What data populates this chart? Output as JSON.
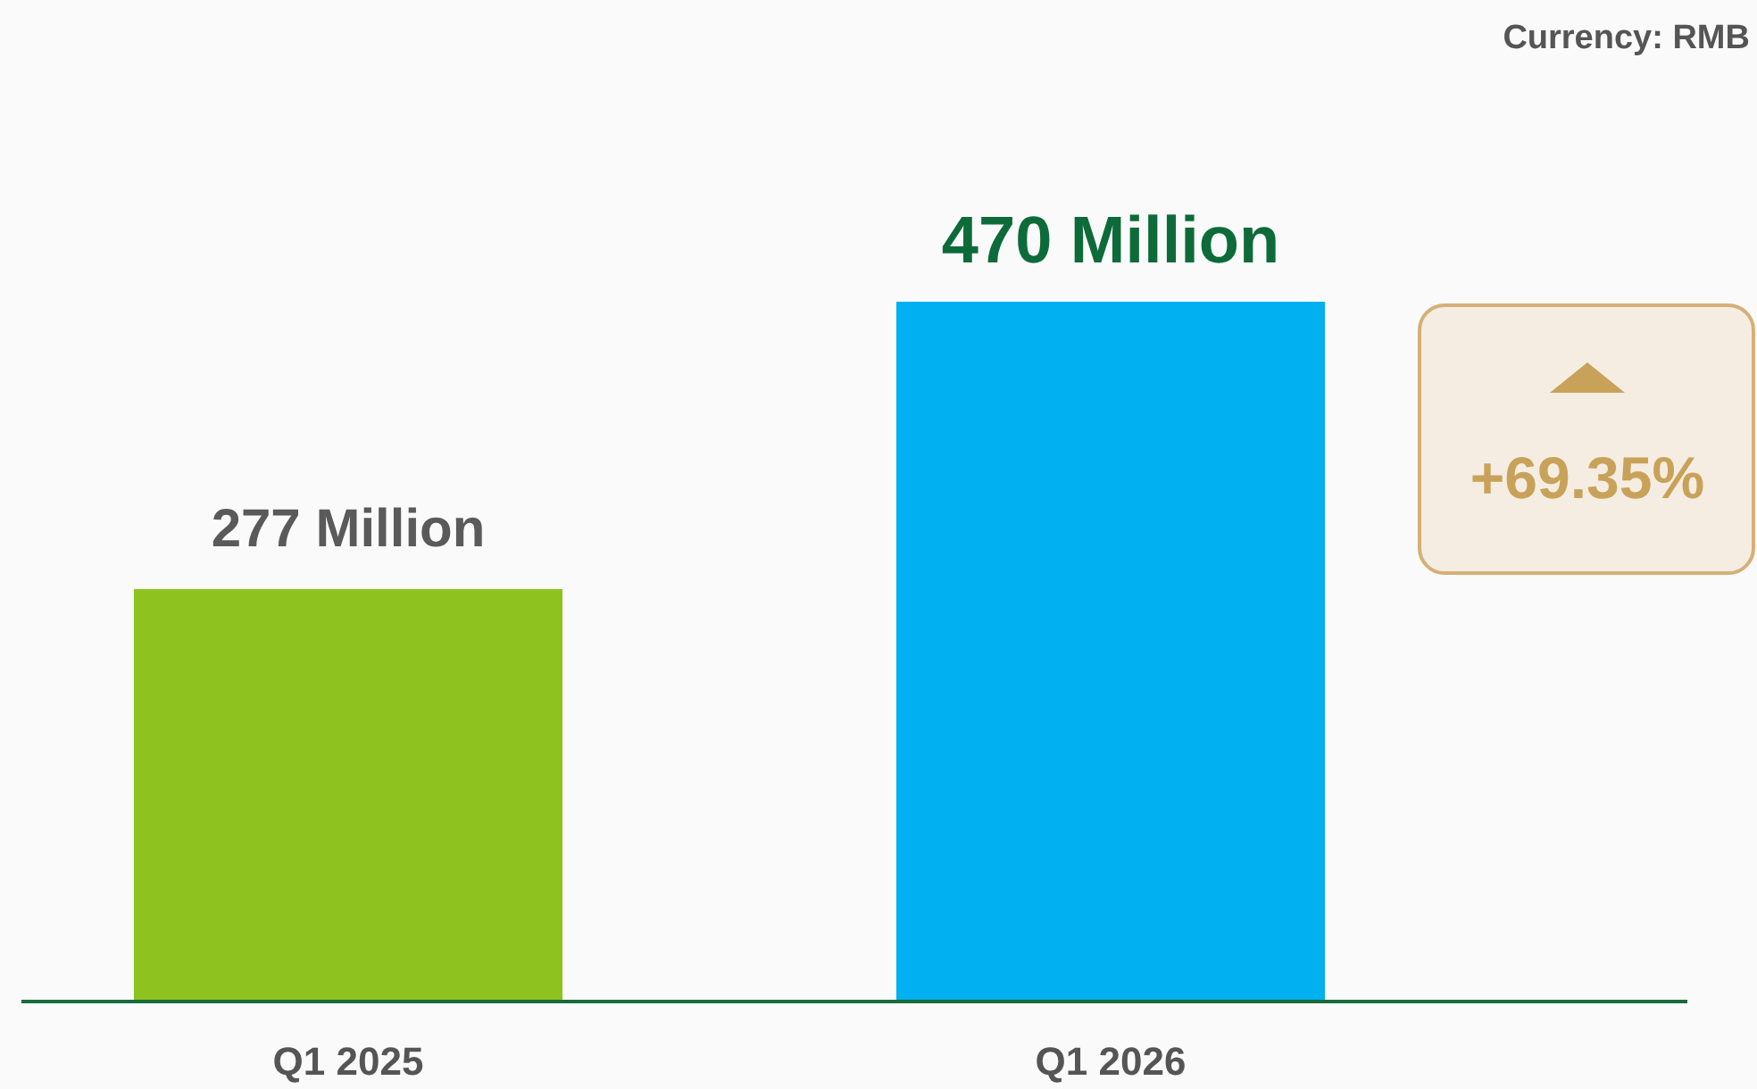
{
  "chart_data": {
    "type": "bar",
    "relative": false,
    "categories": [
      "Q1 2025",
      "Q1 2026"
    ],
    "values": [
      277,
      470
    ],
    "colors": [
      "#8dc21f",
      "#00b0f0"
    ],
    "value_labels": [
      "277 Million",
      "470 Million"
    ],
    "annotations": [
      "Currency: RMB",
      "+69.35%"
    ]
  }
}
